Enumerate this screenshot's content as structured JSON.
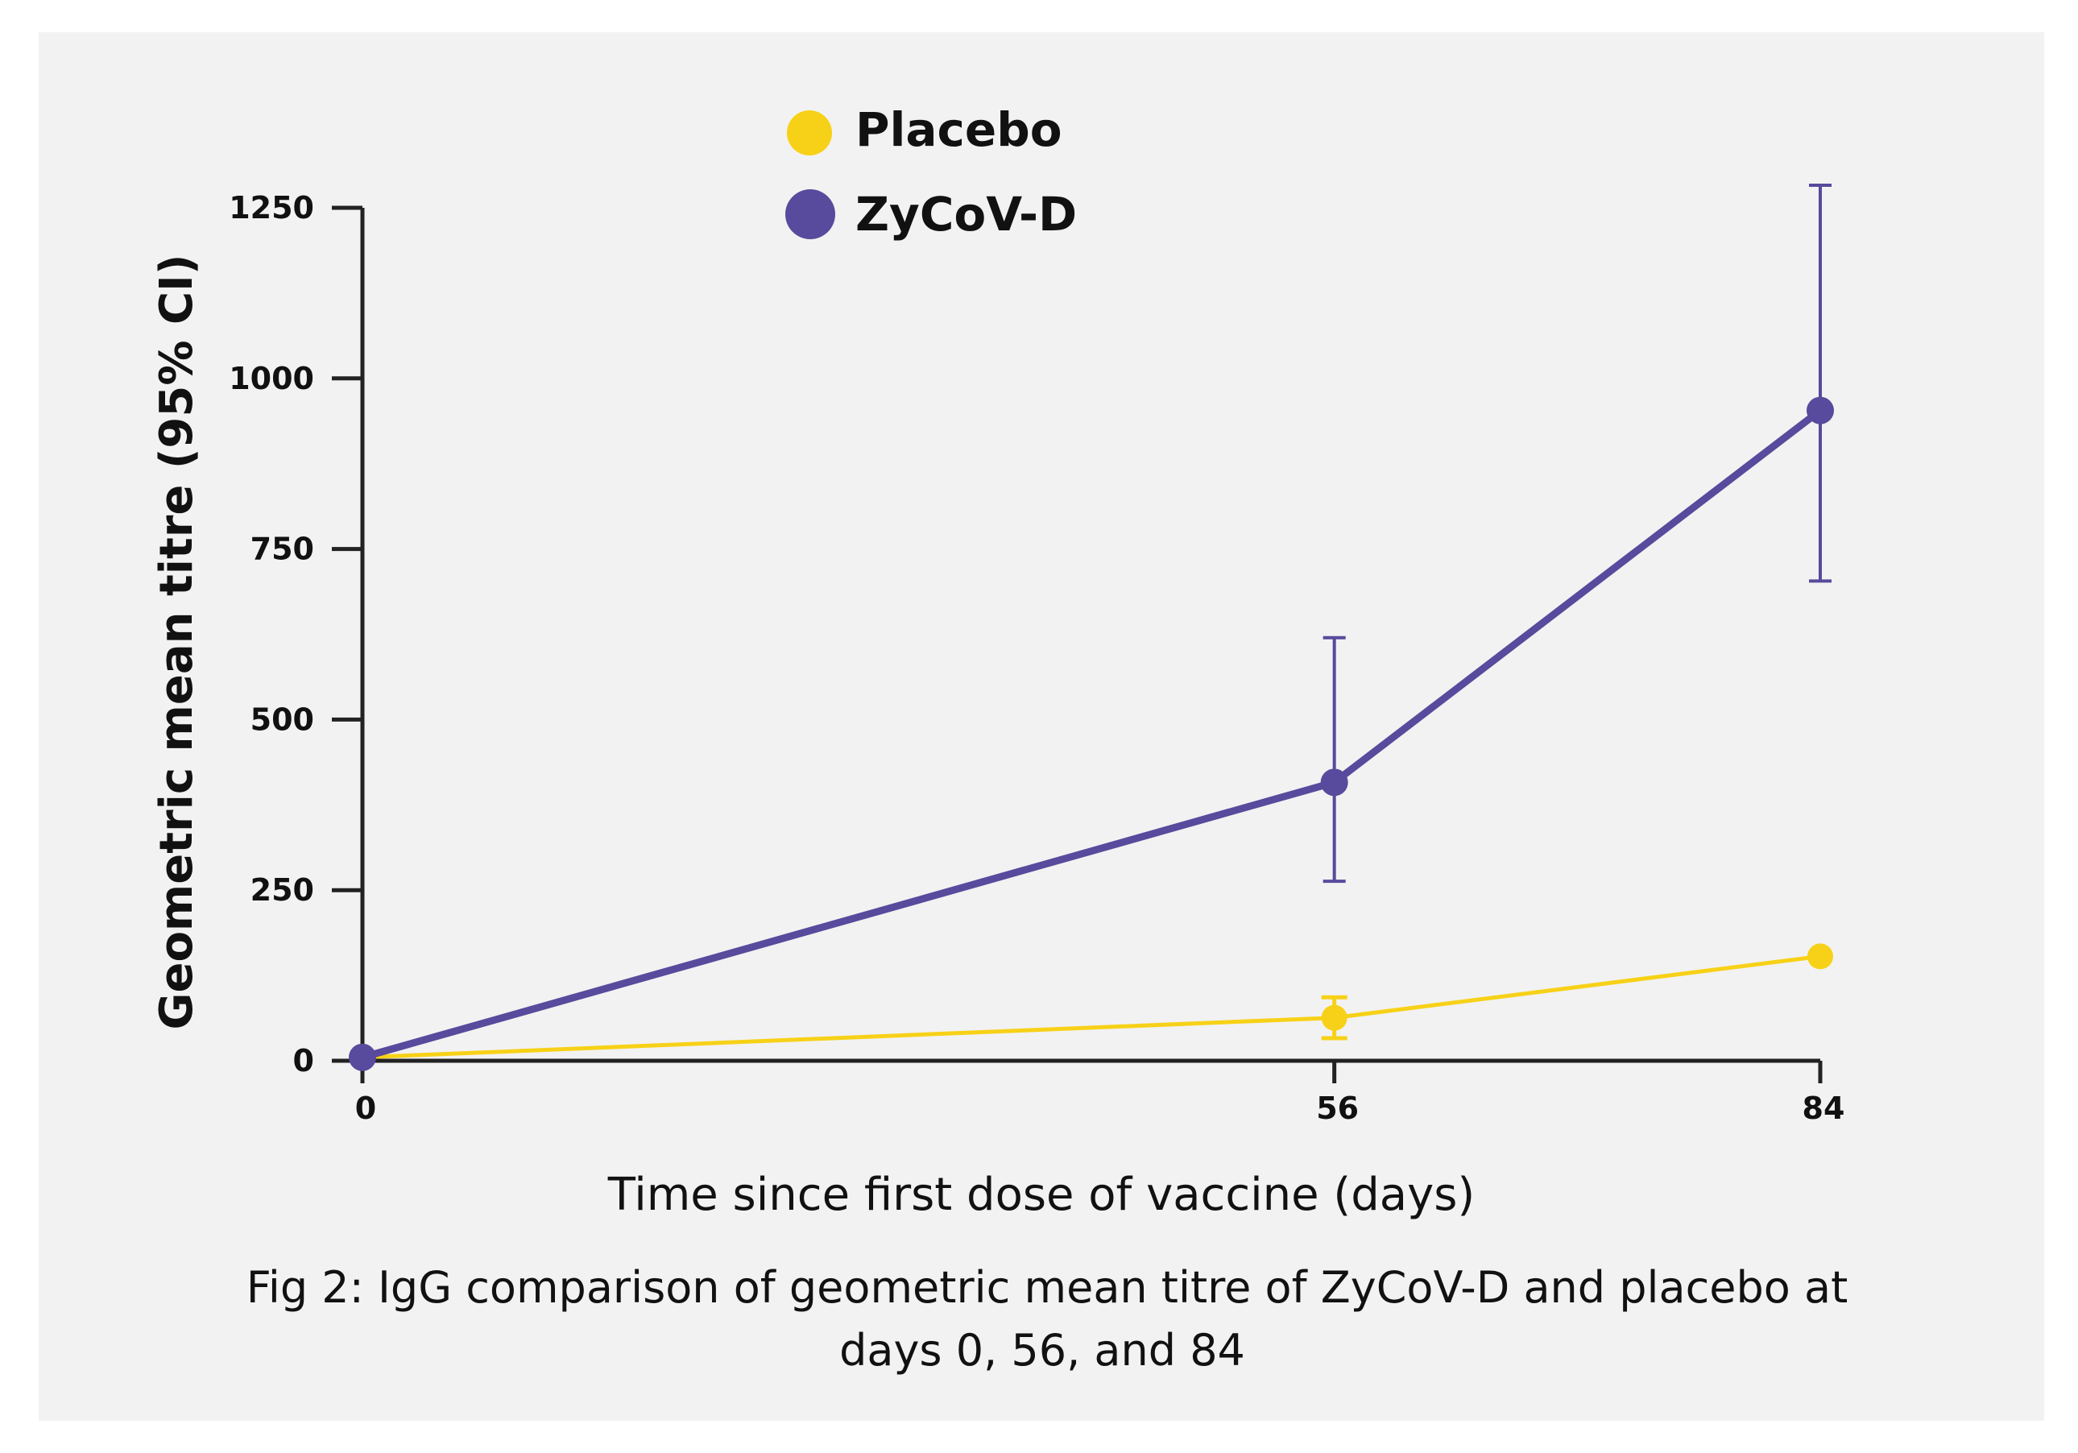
{
  "chart_data": {
    "type": "line",
    "title": "",
    "xlabel": "Time since first dose of vaccine (days)",
    "ylabel": "Geometric mean titre (95% CI)",
    "caption_line1": "Fig 2: IgG comparison of geometric mean titre of ZyCoV-D and placebo at",
    "caption_line2": "days 0, 56, and 84",
    "x_ticks": [
      0,
      56,
      84
    ],
    "x_tick_labels": [
      "0",
      "56",
      "84"
    ],
    "y_ticks": [
      0,
      250,
      500,
      750,
      1000,
      1250
    ],
    "y_tick_labels": [
      "0",
      "250",
      "500",
      "750",
      "1000",
      "1250"
    ],
    "ylim": [
      0,
      1250
    ],
    "legend_position": "top-center",
    "series": [
      {
        "name": "Placebo",
        "color": "#f7d117",
        "x": [
          0,
          56,
          84
        ],
        "values": [
          5,
          63,
          153
        ],
        "ci_low": [
          5,
          33,
          153
        ],
        "ci_high": [
          5,
          93,
          153
        ]
      },
      {
        "name": "ZyCoV-D",
        "color": "#584a9c",
        "x": [
          0,
          56,
          84
        ],
        "values": [
          5,
          408,
          953
        ],
        "ci_low": [
          5,
          263,
          703
        ],
        "ci_high": [
          5,
          620,
          1283
        ]
      }
    ]
  }
}
